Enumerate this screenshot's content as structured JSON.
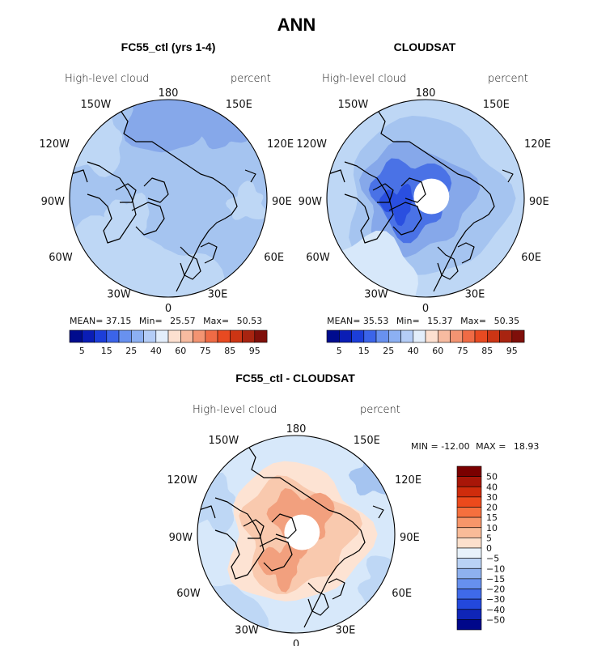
{
  "title": "ANN",
  "colors": {
    "pale": "#d7e8fa",
    "light": "#bed7f5",
    "mid": "#a5c4f0",
    "deep": "#86a8ea",
    "blue": "#4a72e6",
    "darkblue": "#2a4fe0",
    "diff_pos1": "#fde3d3",
    "diff_pos2": "#f9c9ae",
    "diff_pos3": "#f2a07e"
  },
  "panels": {
    "p1": {
      "title": "FC55_ctl (yrs 1-4)",
      "var_label": "High-level cloud",
      "units": "percent",
      "lon": {
        "top": "180",
        "tl": "150W",
        "tr": "150E",
        "ul": "120W",
        "ur": "120E",
        "l": "90W",
        "r": "90E",
        "ll": "60W",
        "lr": "60E",
        "bl": "30W",
        "br": "30E",
        "bottom": "0"
      },
      "stats": {
        "mean_label": "MEAN=",
        "mean": "37.15",
        "min_label": "Min=",
        "min": "25.57",
        "max_label": "Max=",
        "max": "50.53"
      },
      "colorbar": {
        "colors": [
          "#000c8e",
          "#0a1db5",
          "#1c3ed9",
          "#3b64e9",
          "#6891ef",
          "#8cb0f3",
          "#b4cdf7",
          "#e3eefb",
          "#fde0d0",
          "#f7bba0",
          "#f39472",
          "#ef6b45",
          "#e84a21",
          "#cc3514",
          "#a82410",
          "#7f0f0a"
        ],
        "ticks": [
          "5",
          "15",
          "25",
          "40",
          "60",
          "75",
          "85",
          "95"
        ]
      }
    },
    "p2": {
      "title": "CLOUDSAT",
      "var_label": "High-level cloud",
      "units": "percent",
      "lon": {
        "top": "180",
        "tl": "150W",
        "tr": "150E",
        "ul": "120W",
        "ur": "120E",
        "l": "90W",
        "r": "90E",
        "ll": "60W",
        "lr": "60E",
        "bl": "30W",
        "br": "30E",
        "bottom": "0"
      },
      "stats": {
        "mean_label": "MEAN=",
        "mean": "35.53",
        "min_label": "Min=",
        "min": "15.37",
        "max_label": "Max=",
        "max": "50.35"
      },
      "colorbar": {
        "colors": [
          "#000c8e",
          "#0a1db5",
          "#1c3ed9",
          "#3b64e9",
          "#6891ef",
          "#8cb0f3",
          "#b4cdf7",
          "#e3eefb",
          "#fde0d0",
          "#f7bba0",
          "#f39472",
          "#ef6b45",
          "#e84a21",
          "#cc3514",
          "#a82410",
          "#7f0f0a"
        ],
        "ticks": [
          "5",
          "15",
          "25",
          "40",
          "60",
          "75",
          "85",
          "95"
        ]
      }
    },
    "p3": {
      "title": "FC55_ctl - CLOUDSAT",
      "var_label": "High-level cloud",
      "units": "percent",
      "lon": {
        "top": "180",
        "tl": "150W",
        "tr": "150E",
        "ul": "120W",
        "ur": "120E",
        "l": "90W",
        "r": "90E",
        "ll": "60W",
        "lr": "60E",
        "bl": "30W",
        "br": "30E",
        "bottom": "0"
      },
      "minmax": {
        "min_label": "MIN =",
        "min": "-12.00",
        "max_label": "MAX =",
        "max": "18.93"
      },
      "colorbar": {
        "colors": [
          "#7a0000",
          "#a81608",
          "#cf2c0c",
          "#ec4a1c",
          "#f5703e",
          "#f7966a",
          "#f9bb98",
          "#fce0cc",
          "#e8f2fb",
          "#b9d2f5",
          "#8eb1ef",
          "#6690ee",
          "#3f6ae9",
          "#2348dc",
          "#0f25b7",
          "#00078a"
        ],
        "ticks": [
          "50",
          "40",
          "30",
          "20",
          "15",
          "10",
          "5",
          "0",
          "−5",
          "−10",
          "−15",
          "−20",
          "−30",
          "−40",
          "−50"
        ]
      }
    }
  }
}
